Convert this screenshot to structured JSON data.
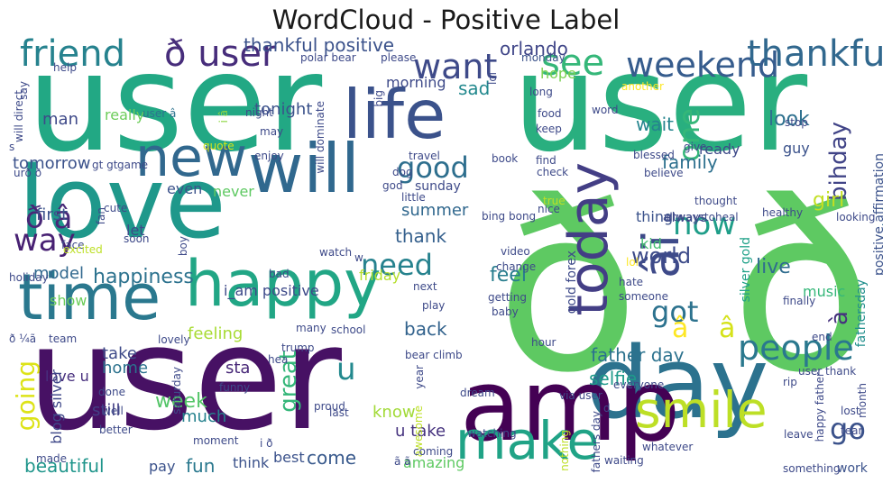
{
  "title": "WordCloud - Positive Label",
  "chart_data": {
    "type": "wordcloud",
    "title": "WordCloud - Positive Label",
    "words": [
      {
        "text": "user",
        "color": "#22a884"
      },
      {
        "text": "user",
        "color": "#29af7f"
      },
      {
        "text": "user",
        "color": "#471164"
      },
      {
        "text": "ð",
        "color": "#5ec962"
      },
      {
        "text": "ð",
        "color": "#5ec962"
      },
      {
        "text": "love",
        "color": "#1f988b"
      },
      {
        "text": "day",
        "color": "#2c728e"
      },
      {
        "text": "amp",
        "color": "#440154"
      },
      {
        "text": "happy",
        "color": "#21a685"
      },
      {
        "text": "time",
        "color": "#2a788e"
      },
      {
        "text": "life",
        "color": "#3b528b"
      },
      {
        "text": "will",
        "color": "#30688e"
      },
      {
        "text": "new",
        "color": "#31688e"
      },
      {
        "text": "today",
        "color": "#433e85"
      },
      {
        "text": "âï",
        "color": "#3e4a89"
      },
      {
        "text": "smile",
        "color": "#bddf26"
      },
      {
        "text": "make",
        "color": "#20a386"
      },
      {
        "text": "friend",
        "color": "#26828e"
      },
      {
        "text": "ð user",
        "color": "#472d7b"
      },
      {
        "text": "see",
        "color": "#35b779"
      },
      {
        "text": "weekend",
        "color": "#365c8d"
      },
      {
        "text": "thankful",
        "color": "#31688e"
      },
      {
        "text": "want",
        "color": "#3e4a89"
      },
      {
        "text": "one",
        "color": "#35b779"
      },
      {
        "text": "now",
        "color": "#1f9e89"
      },
      {
        "text": "good",
        "color": "#2e6f8e"
      },
      {
        "text": "bihday",
        "color": "#414487"
      },
      {
        "text": "ð â",
        "color": "#482878"
      },
      {
        "text": "way",
        "color": "#482173"
      },
      {
        "text": "need",
        "color": "#26828e"
      },
      {
        "text": "got",
        "color": "#2c728e"
      },
      {
        "text": "people",
        "color": "#2a788e"
      },
      {
        "text": "go",
        "color": "#3b528b"
      },
      {
        "text": "going",
        "color": "#dde318"
      },
      {
        "text": "u",
        "color": "#23898e"
      },
      {
        "text": "â",
        "color": "#fde725"
      },
      {
        "text": "â",
        "color": "#d5e21a"
      },
      {
        "text": "à",
        "color": "#46327e"
      },
      {
        "text": "thankful positive",
        "color": "#3b528b"
      },
      {
        "text": "orlando",
        "color": "#404688"
      },
      {
        "text": "happiness",
        "color": "#2c728e"
      },
      {
        "text": "feel",
        "color": "#287d8e"
      },
      {
        "text": "live",
        "color": "#2f6c8e"
      },
      {
        "text": "world",
        "color": "#3e4c8a"
      },
      {
        "text": "family",
        "color": "#2d708e"
      },
      {
        "text": "girl",
        "color": "#c2df23"
      },
      {
        "text": "look",
        "color": "#2d708e"
      },
      {
        "text": "first",
        "color": "#3b528b"
      },
      {
        "text": "model",
        "color": "#31688e"
      },
      {
        "text": "tomorrow",
        "color": "#3b528b"
      },
      {
        "text": "sad",
        "color": "#23898e"
      },
      {
        "text": "wait",
        "color": "#25848e"
      },
      {
        "text": "hope",
        "color": "#7ad151"
      },
      {
        "text": "morning",
        "color": "#3e4a89"
      },
      {
        "text": "summer",
        "color": "#31688e"
      },
      {
        "text": "thank",
        "color": "#35608d"
      },
      {
        "text": "back",
        "color": "#33638d"
      },
      {
        "text": "great",
        "color": "#34b679"
      },
      {
        "text": "week",
        "color": "#54c568"
      },
      {
        "text": "beautiful",
        "color": "#1f958b"
      },
      {
        "text": "fun",
        "color": "#2a788e"
      },
      {
        "text": "come",
        "color": "#38598c"
      },
      {
        "text": "work",
        "color": "#3b528b"
      },
      {
        "text": "father day",
        "color": "#2c728e"
      },
      {
        "text": "selfie",
        "color": "#1f9a8a"
      },
      {
        "text": "love u",
        "color": "#472f7d"
      },
      {
        "text": "take",
        "color": "#3e4a89"
      },
      {
        "text": "home",
        "color": "#2c728e"
      },
      {
        "text": "still",
        "color": "#433e85"
      },
      {
        "text": "much",
        "color": "#26828e"
      },
      {
        "text": "know",
        "color": "#a2da37"
      },
      {
        "text": "u take",
        "color": "#46337f"
      },
      {
        "text": "amazing",
        "color": "#5ec962"
      },
      {
        "text": "feeling",
        "color": "#a8db34"
      },
      {
        "text": "show",
        "color": "#6ccd5a"
      },
      {
        "text": "blog silver",
        "color": "#3f4889"
      },
      {
        "text": "fathersday",
        "color": "#218f8d"
      },
      {
        "text": "positive affirmation",
        "color": "#3b528b"
      },
      {
        "text": "dad",
        "color": "#31688e"
      },
      {
        "text": "silver gold",
        "color": "#1fa188"
      },
      {
        "text": "gold forex",
        "color": "#3e4a89"
      },
      {
        "text": "tonight",
        "color": "#3b528b"
      },
      {
        "text": "really",
        "color": "#6ccd5a"
      },
      {
        "text": "man",
        "color": "#3e4989"
      },
      {
        "text": "i_am positive",
        "color": "#3e4a89"
      },
      {
        "text": "even",
        "color": "#3b528b"
      },
      {
        "text": "never",
        "color": "#5ec962"
      },
      {
        "text": "sunday",
        "color": "#3e4a89"
      },
      {
        "text": "friday",
        "color": "#b5de2b"
      },
      {
        "text": "let",
        "color": "#3e4a89"
      },
      {
        "text": "ready",
        "color": "#3e4a89"
      },
      {
        "text": "thing",
        "color": "#3b528b"
      },
      {
        "text": "kid",
        "color": "#44bf70"
      },
      {
        "text": "guy",
        "color": "#3b528b"
      },
      {
        "text": "always",
        "color": "#3e4a89"
      },
      {
        "text": "music",
        "color": "#35b779"
      },
      {
        "text": "sta",
        "color": "#482878"
      },
      {
        "text": "best",
        "color": "#3b528b"
      },
      {
        "text": "think",
        "color": "#3b528b"
      },
      {
        "text": "pay",
        "color": "#3b528b"
      },
      {
        "text": "i â",
        "color": "#8fd744"
      },
      {
        "text": "polar bear",
        "color": "#3e4a89"
      },
      {
        "text": "please",
        "color": "#3e4a89"
      },
      {
        "text": "monday",
        "color": "#3b528b"
      },
      {
        "text": "lol",
        "color": "#3e4a89"
      },
      {
        "text": "help",
        "color": "#3e4a89"
      },
      {
        "text": "game",
        "color": "#3e4a89"
      },
      {
        "text": "user â",
        "color": "#2c728e"
      },
      {
        "text": "night",
        "color": "#3e4a89"
      },
      {
        "text": "will dominate",
        "color": "#3e4a89"
      },
      {
        "text": "big",
        "color": "#3e4a89"
      },
      {
        "text": "long",
        "color": "#3e4a89"
      },
      {
        "text": "another",
        "color": "#fde725"
      },
      {
        "text": "word",
        "color": "#3e4a89"
      },
      {
        "text": "food",
        "color": "#3e4a89"
      },
      {
        "text": "keep",
        "color": "#3e4a89"
      },
      {
        "text": "say",
        "color": "#3e4a89"
      },
      {
        "text": "will direct",
        "color": "#3e4a89"
      },
      {
        "text": "quote",
        "color": "#d5e21a"
      },
      {
        "text": "may",
        "color": "#3e4a89"
      },
      {
        "text": "enjoy",
        "color": "#3e4a89"
      },
      {
        "text": "travel",
        "color": "#3e4a89"
      },
      {
        "text": "book",
        "color": "#3e4a89"
      },
      {
        "text": "give",
        "color": "#3e4a89"
      },
      {
        "text": "stop",
        "color": "#3e4a89"
      },
      {
        "text": "climb racing",
        "color": "#3e4a89"
      },
      {
        "text": "gt gt",
        "color": "#3e4a89"
      },
      {
        "text": "urð ð",
        "color": "#3e4a89"
      },
      {
        "text": "s",
        "color": "#3e4a89"
      },
      {
        "text": "find",
        "color": "#3e4a89"
      },
      {
        "text": "check",
        "color": "#3e4a89"
      },
      {
        "text": "blessed",
        "color": "#3e4a89"
      },
      {
        "text": "believe",
        "color": "#3e4a89"
      },
      {
        "text": "thought",
        "color": "#3e4a89"
      },
      {
        "text": "dog",
        "color": "#3e4a89"
      },
      {
        "text": "god",
        "color": "#3e4a89"
      },
      {
        "text": "little",
        "color": "#3e4a89"
      },
      {
        "text": "nice",
        "color": "#3e4a89"
      },
      {
        "text": "true",
        "color": "#bddf26"
      },
      {
        "text": "bing bong",
        "color": "#3e4a89"
      },
      {
        "text": "altwaystoheal",
        "color": "#3e4a89"
      },
      {
        "text": "healthy",
        "color": "#3e4a89"
      },
      {
        "text": "looking",
        "color": "#3e4a89"
      },
      {
        "text": "fan",
        "color": "#3e4a89"
      },
      {
        "text": "cute",
        "color": "#3e4a89"
      },
      {
        "text": "face",
        "color": "#3e4a89"
      },
      {
        "text": "soon",
        "color": "#3e4a89"
      },
      {
        "text": "excited",
        "color": "#bddf26"
      },
      {
        "text": "boy",
        "color": "#3e4a89"
      },
      {
        "text": "watch",
        "color": "#3e4a89"
      },
      {
        "text": "w",
        "color": "#3e4a89"
      },
      {
        "text": "bad",
        "color": "#3e4a89"
      },
      {
        "text": "holiday",
        "color": "#3e4a89"
      },
      {
        "text": "lol",
        "color": "#fde725"
      },
      {
        "text": "hate",
        "color": "#3e4a89"
      },
      {
        "text": "video",
        "color": "#3e4a89"
      },
      {
        "text": "change",
        "color": "#3e4a89"
      },
      {
        "text": "getting",
        "color": "#3e4a89"
      },
      {
        "text": "next",
        "color": "#3e4a89"
      },
      {
        "text": "play",
        "color": "#3e4a89"
      },
      {
        "text": "baby",
        "color": "#3e4a89"
      },
      {
        "text": "someone",
        "color": "#3e4a89"
      },
      {
        "text": "finally",
        "color": "#3e4a89"
      },
      {
        "text": "ð ¼ã",
        "color": "#3e4a89"
      },
      {
        "text": "team",
        "color": "#3e4a89"
      },
      {
        "text": "lovely",
        "color": "#3e4a89"
      },
      {
        "text": "many",
        "color": "#3e4a89"
      },
      {
        "text": "school",
        "color": "#3e4a89"
      },
      {
        "text": "trump",
        "color": "#3e4a89"
      },
      {
        "text": "hea",
        "color": "#3e4a89"
      },
      {
        "text": "bear climb",
        "color": "#3e4a89"
      },
      {
        "text": "hour",
        "color": "#3e4a89"
      },
      {
        "text": "end",
        "color": "#3e4a89"
      },
      {
        "text": "year",
        "color": "#3e4a89"
      },
      {
        "text": "via user",
        "color": "#3e4a89"
      },
      {
        "text": "everyone",
        "color": "#3e4a89"
      },
      {
        "text": "user thank",
        "color": "#3e4a89"
      },
      {
        "text": "done",
        "color": "#3e4a89"
      },
      {
        "text": "well",
        "color": "#3e4a89"
      },
      {
        "text": "saturday",
        "color": "#3e4a89"
      },
      {
        "text": "funny",
        "color": "#3e4a89"
      },
      {
        "text": "better",
        "color": "#3e4a89"
      },
      {
        "text": "moment",
        "color": "#3e4a89"
      },
      {
        "text": "i ð",
        "color": "#3e4a89"
      },
      {
        "text": "proud",
        "color": "#3e4a89"
      },
      {
        "text": "last",
        "color": "#3e4a89"
      },
      {
        "text": "dream",
        "color": "#3e4a89"
      },
      {
        "text": "awesome",
        "color": "#bddf26"
      },
      {
        "text": "fathers day",
        "color": "#3e4a89"
      },
      {
        "text": "d",
        "color": "#3e4a89"
      },
      {
        "text": "rip",
        "color": "#3e4a89"
      },
      {
        "text": "lost",
        "color": "#3e4a89"
      },
      {
        "text": "month",
        "color": "#3e4a89"
      },
      {
        "text": "happy father",
        "color": "#3e4a89"
      },
      {
        "text": "leave",
        "color": "#3e4a89"
      },
      {
        "text": "tear",
        "color": "#3e4a89"
      },
      {
        "text": "whatever",
        "color": "#3e4a89"
      },
      {
        "text": "coming",
        "color": "#3e4a89"
      },
      {
        "text": "watching",
        "color": "#3e4a89"
      },
      {
        "text": "nothing",
        "color": "#bddf26"
      },
      {
        "text": "waiting",
        "color": "#3e4a89"
      },
      {
        "text": "something",
        "color": "#3e4a89"
      },
      {
        "text": "made",
        "color": "#3e4a89"
      },
      {
        "text": "ã ã",
        "color": "#3e4a89"
      }
    ]
  }
}
